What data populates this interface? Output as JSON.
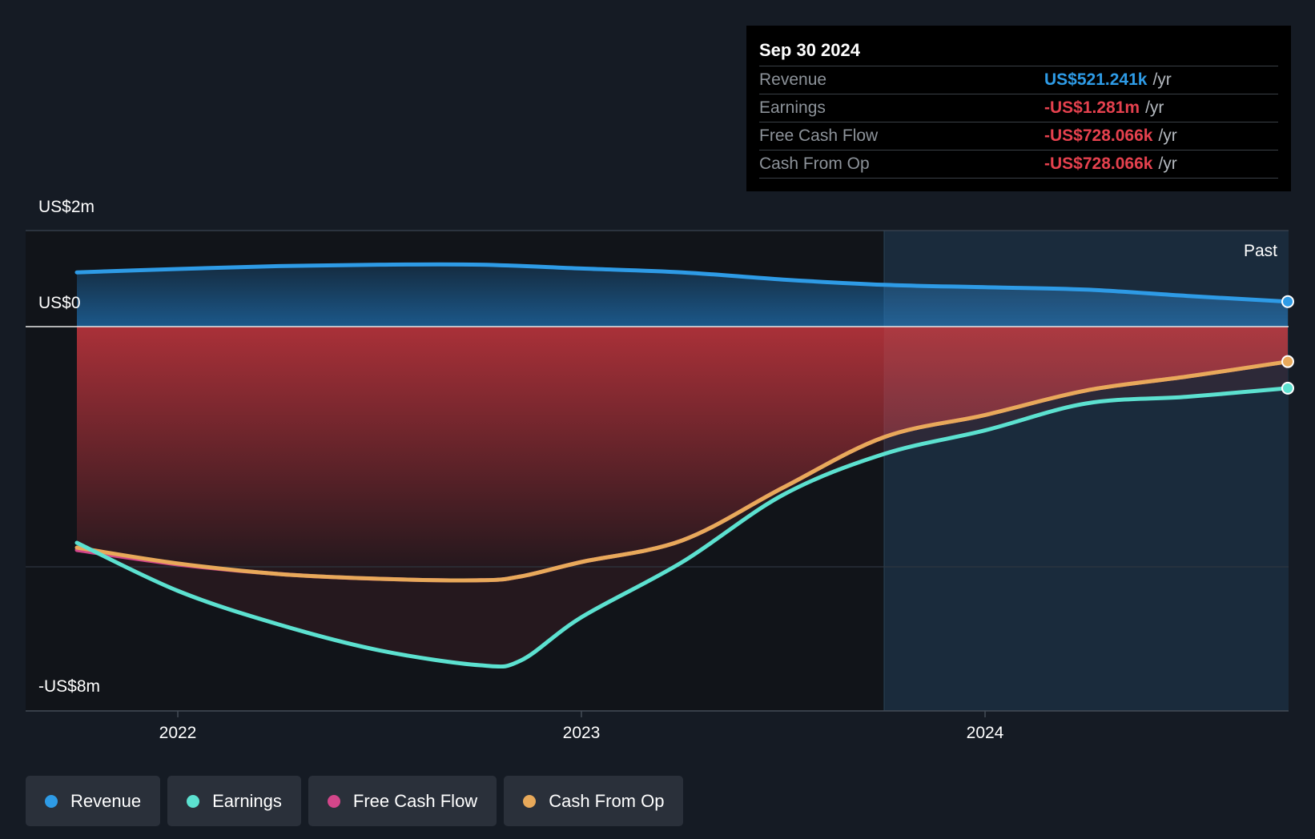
{
  "tooltip": {
    "date": "Sep 30 2024",
    "rows": [
      {
        "label": "Revenue",
        "value": "US$521.241k",
        "unit": "/yr",
        "color": "#2e9be6"
      },
      {
        "label": "Earnings",
        "value": "-US$1.281m",
        "unit": "/yr",
        "color": "#e5414e"
      },
      {
        "label": "Free Cash Flow",
        "value": "-US$728.066k",
        "unit": "/yr",
        "color": "#e5414e"
      },
      {
        "label": "Cash From Op",
        "value": "-US$728.066k",
        "unit": "/yr",
        "color": "#e5414e"
      }
    ]
  },
  "chart_data": {
    "type": "line",
    "y_axis_labels": [
      "US$2m",
      "US$0",
      "-US$8m"
    ],
    "ylim": [
      -8000000,
      2000000
    ],
    "x_ticks": [
      {
        "label": "2022",
        "x": 2022.0
      },
      {
        "label": "2023",
        "x": 2023.0
      },
      {
        "label": "2024",
        "x": 2024.0
      }
    ],
    "xlim": [
      2021.62,
      2024.75
    ],
    "past_label": "Past",
    "past_start": 2023.75,
    "grid": true,
    "series": [
      {
        "name": "Revenue",
        "color": "#2e9be6",
        "x": [
          2021.75,
          2022.0,
          2022.25,
          2022.5,
          2022.75,
          2023.0,
          2023.25,
          2023.5,
          2023.75,
          2024.0,
          2024.25,
          2024.5,
          2024.75
        ],
        "values": [
          1130000,
          1200000,
          1260000,
          1290000,
          1290000,
          1210000,
          1130000,
          980000,
          870000,
          820000,
          770000,
          640000,
          521241
        ]
      },
      {
        "name": "Earnings",
        "color": "#5ce1d0",
        "x": [
          2021.75,
          2022.0,
          2022.25,
          2022.5,
          2022.75,
          2022.85,
          2023.0,
          2023.25,
          2023.5,
          2023.75,
          2024.0,
          2024.25,
          2024.5,
          2024.75
        ],
        "values": [
          -4500000,
          -5500000,
          -6200000,
          -6740000,
          -7050000,
          -6950000,
          -6050000,
          -4900000,
          -3500000,
          -2650000,
          -2160000,
          -1600000,
          -1460000,
          -1281000
        ]
      },
      {
        "name": "Free Cash Flow",
        "color": "#d3468a",
        "x": [
          2021.75,
          2022.0,
          2022.25,
          2022.5,
          2022.75,
          2022.85,
          2023.0,
          2023.25,
          2023.5,
          2023.75,
          2024.0,
          2024.25,
          2024.5,
          2024.75
        ],
        "values": [
          -4650000,
          -4950000,
          -5150000,
          -5250000,
          -5280000,
          -5200000,
          -4900000,
          -4450000,
          -3350000,
          -2300000,
          -1840000,
          -1330000,
          -1040000,
          -728066
        ]
      },
      {
        "name": "Cash From Op",
        "color": "#e8a95a",
        "x": [
          2021.75,
          2022.0,
          2022.25,
          2022.5,
          2022.75,
          2022.85,
          2023.0,
          2023.25,
          2023.5,
          2023.75,
          2024.0,
          2024.25,
          2024.5,
          2024.75
        ],
        "values": [
          -4600000,
          -4930000,
          -5150000,
          -5250000,
          -5280000,
          -5200000,
          -4900000,
          -4450000,
          -3350000,
          -2300000,
          -1840000,
          -1330000,
          -1040000,
          -728066
        ]
      }
    ]
  },
  "legend": [
    {
      "label": "Revenue",
      "color": "#2e9be6"
    },
    {
      "label": "Earnings",
      "color": "#5ce1d0"
    },
    {
      "label": "Free Cash Flow",
      "color": "#d3468a"
    },
    {
      "label": "Cash From Op",
      "color": "#e8a95a"
    }
  ]
}
